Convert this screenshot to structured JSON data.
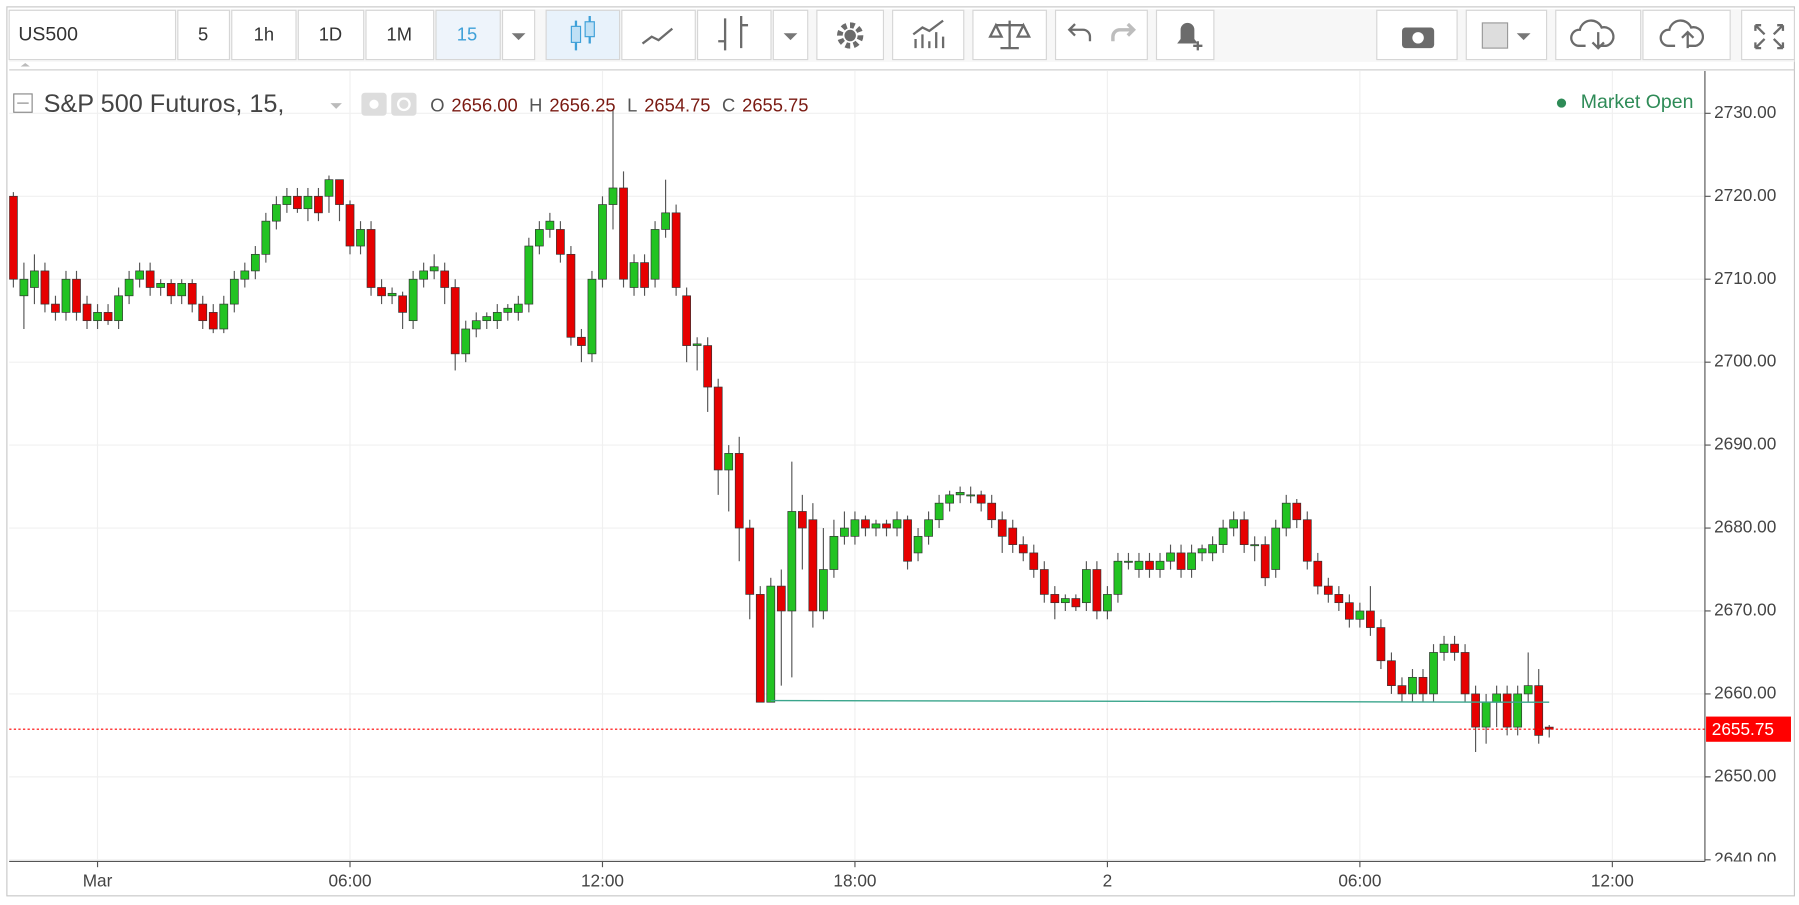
{
  "toolbar": {
    "symbol": "US500",
    "intervals": [
      "5",
      "1h",
      "1D",
      "1M",
      "15"
    ]
  },
  "chart_data": {
    "type": "candlestick",
    "title": "S&P 500 Futuros, 15,",
    "status": "Market Open",
    "ohlc_legend": {
      "names": [
        "O",
        "H",
        "L",
        "C"
      ],
      "values": [
        2656,
        2656.25,
        2654.75,
        2655.75
      ],
      "value_labels": [
        "2656.00",
        "2656.25",
        "2654.75",
        "2655.75"
      ]
    },
    "up_color": "#22c322",
    "down_color": "#e60000",
    "grid": true,
    "xlim": [
      -2.1,
      38.2
    ],
    "ylim": [
      2639.8,
      2735.1
    ],
    "xticks": [
      {
        "value": 0,
        "label": "Mar"
      },
      {
        "value": 6,
        "label": "06:00"
      },
      {
        "value": 12,
        "label": "12:00"
      },
      {
        "value": 18,
        "label": "18:00"
      },
      {
        "value": 24,
        "label": "2"
      },
      {
        "value": 30,
        "label": "06:00"
      },
      {
        "value": 36,
        "label": "12:00"
      }
    ],
    "yticks": [
      {
        "value": 2640,
        "label": "2640.00"
      },
      {
        "value": 2650,
        "label": "2650.00"
      },
      {
        "value": 2660,
        "label": "2660.00"
      },
      {
        "value": 2670,
        "label": "2670.00"
      },
      {
        "value": 2680,
        "label": "2680.00"
      },
      {
        "value": 2690,
        "label": "2690.00"
      },
      {
        "value": 2700,
        "label": "2700.00"
      },
      {
        "value": 2710,
        "label": "2710.00"
      },
      {
        "value": 2720,
        "label": "2720.00"
      },
      {
        "value": 2730,
        "label": "2730.00"
      }
    ],
    "x": [
      -2,
      -1.75,
      -1.5,
      -1.25,
      -1,
      -0.75,
      -0.5,
      -0.25,
      0,
      0.25,
      0.5,
      0.75,
      1,
      1.25,
      1.5,
      1.75,
      2,
      2.25,
      2.5,
      2.75,
      3,
      3.25,
      3.5,
      3.75,
      4,
      4.25,
      4.5,
      4.75,
      5,
      5.25,
      5.5,
      5.75,
      6,
      6.25,
      6.5,
      6.75,
      7,
      7.25,
      7.5,
      7.75,
      8,
      8.25,
      8.5,
      8.75,
      9,
      9.25,
      9.5,
      9.75,
      10,
      10.25,
      10.5,
      10.75,
      11,
      11.25,
      11.5,
      11.75,
      12,
      12.25,
      12.5,
      12.75,
      13,
      13.25,
      13.5,
      13.75,
      14,
      14.25,
      14.5,
      14.75,
      15,
      15.25,
      15.5,
      15.75,
      16,
      16.25,
      16.5,
      16.75,
      17,
      17.25,
      17.5,
      17.75,
      18,
      18.25,
      18.5,
      18.75,
      19,
      19.25,
      19.5,
      19.75,
      20,
      20.25,
      20.5,
      20.75,
      21,
      21.25,
      21.5,
      21.75,
      22,
      22.25,
      22.5,
      22.75,
      23,
      23.25,
      23.5,
      23.75,
      24,
      24.25,
      24.5,
      24.75,
      25,
      25.25,
      25.5,
      25.75,
      26,
      26.25,
      26.5,
      26.75,
      27,
      27.25,
      27.5,
      27.75,
      28,
      28.25,
      28.5,
      28.75,
      29,
      29.25,
      29.5,
      29.75,
      30,
      30.25,
      30.5,
      30.75,
      31,
      31.25,
      31.5,
      31.75,
      32,
      32.25,
      32.5,
      32.75,
      33,
      33.25,
      33.5,
      33.75,
      34,
      34.25,
      34.5
    ],
    "open": [
      2720,
      2708,
      2709,
      2711,
      2707,
      2706,
      2710,
      2707,
      2705,
      2706,
      2705,
      2708,
      2710,
      2711,
      2709,
      2709.5,
      2708,
      2709.5,
      2707,
      2706,
      2704,
      2707,
      2710,
      2711,
      2713,
      2717,
      2719,
      2720,
      2718.5,
      2720,
      2720,
      2722,
      2719,
      2714,
      2716,
      2709,
      2708,
      2708,
      2705,
      2710,
      2711,
      2711,
      2709,
      2701,
      2704,
      2705,
      2705,
      2706,
      2706,
      2707,
      2714,
      2716,
      2716,
      2713,
      2703,
      2701,
      2710,
      2719,
      2721,
      2709,
      2712,
      2710,
      2716,
      2718,
      2708,
      2702,
      2702,
      2697,
      2687,
      2689,
      2680,
      2672,
      2659,
      2673,
      2670,
      2682,
      2681,
      2670,
      2675,
      2679,
      2679,
      2681,
      2680,
      2680.5,
      2680,
      2681,
      2677,
      2679,
      2681,
      2683,
      2684,
      2684,
      2684,
      2683,
      2681,
      2680,
      2678,
      2677,
      2675,
      2672,
      2671,
      2671.5,
      2671,
      2675,
      2670,
      2672,
      2676,
      2675,
      2676,
      2675,
      2676,
      2677,
      2675,
      2677,
      2677,
      2678,
      2680,
      2681,
      2678,
      2678,
      2675,
      2680,
      2683,
      2681,
      2676,
      2673,
      2672,
      2671,
      2669,
      2670,
      2668,
      2664,
      2661,
      2660,
      2662,
      2660,
      2665,
      2666,
      2665,
      2660,
      2656,
      2659,
      2660,
      2656,
      2660,
      2661,
      2656
    ],
    "high": [
      2720.5,
      2712,
      2713,
      2712,
      2708,
      2711,
      2711,
      2708,
      2707,
      2707,
      2709,
      2711,
      2712,
      2712,
      2710,
      2710,
      2710,
      2710,
      2708,
      2707,
      2708,
      2711,
      2712,
      2714,
      2718,
      2720,
      2721,
      2721,
      2721,
      2721,
      2722.5,
      2722,
      2719.5,
      2717,
      2717,
      2710,
      2709,
      2708.5,
      2711,
      2712,
      2713,
      2712,
      2710,
      2705,
      2706,
      2706,
      2707,
      2707,
      2708,
      2715,
      2717,
      2718,
      2717,
      2714,
      2704,
      2711,
      2720,
      2730.5,
      2723,
      2713,
      2713,
      2717,
      2722,
      2719,
      2709,
      2703,
      2703,
      2698,
      2690,
      2691,
      2681,
      2673,
      2674,
      2675,
      2688,
      2684,
      2683,
      2680,
      2681,
      2682,
      2682,
      2681.5,
      2681,
      2681,
      2682,
      2681.5,
      2680,
      2682,
      2684,
      2684.5,
      2685,
      2685,
      2684.5,
      2684,
      2682,
      2681,
      2679,
      2678,
      2676,
      2673,
      2672,
      2672,
      2676,
      2676,
      2673,
      2677,
      2677,
      2677,
      2677,
      2677,
      2678,
      2678,
      2678,
      2678,
      2679,
      2681,
      2682,
      2682,
      2679,
      2679,
      2681,
      2684,
      2683.5,
      2682,
      2677,
      2674,
      2673,
      2672,
      2671,
      2673,
      2669,
      2665,
      2662,
      2663,
      2663,
      2666,
      2667,
      2667,
      2666,
      2661,
      2660,
      2661,
      2661,
      2661,
      2665,
      2663,
      2656.25
    ],
    "low": [
      2709,
      2704,
      2707,
      2706,
      2705,
      2705,
      2705,
      2704,
      2704,
      2704.5,
      2704,
      2707,
      2709,
      2708,
      2708,
      2707,
      2707,
      2706,
      2704,
      2703.5,
      2703.5,
      2706,
      2709,
      2710,
      2712,
      2716,
      2718,
      2718,
      2717,
      2717,
      2718,
      2717,
      2713,
      2713,
      2708,
      2707,
      2707,
      2704,
      2704,
      2709,
      2710,
      2707,
      2699,
      2700,
      2703,
      2704,
      2704,
      2705,
      2705,
      2706,
      2713,
      2715,
      2712,
      2702,
      2700,
      2700,
      2709,
      2716,
      2709,
      2708,
      2708,
      2709,
      2715,
      2708,
      2700,
      2699,
      2694,
      2684,
      2682,
      2676,
      2669,
      2659,
      2659,
      2661,
      2662,
      2675,
      2668,
      2669,
      2674,
      2678,
      2678,
      2679,
      2679,
      2679,
      2679,
      2675,
      2676,
      2678,
      2680,
      2682,
      2683,
      2683,
      2682,
      2680,
      2677,
      2677,
      2676,
      2674,
      2671,
      2669,
      2670,
      2670,
      2670,
      2669,
      2669,
      2671,
      2675,
      2674,
      2674,
      2674,
      2675,
      2674,
      2674,
      2676,
      2676,
      2677,
      2679,
      2677,
      2676,
      2673,
      2674,
      2679,
      2680,
      2675,
      2672,
      2671,
      2670,
      2668,
      2668,
      2667,
      2663,
      2660,
      2659,
      2659,
      2659,
      2659,
      2664,
      2664,
      2659,
      2653,
      2654,
      2656,
      2655,
      2655,
      2659,
      2654,
      2654.75
    ],
    "close": [
      2710,
      2710,
      2711,
      2707,
      2706,
      2710,
      2706,
      2705,
      2706,
      2705,
      2708,
      2710,
      2711,
      2709,
      2709.5,
      2708,
      2709.5,
      2707,
      2705,
      2704,
      2707,
      2710,
      2711,
      2713,
      2717,
      2719,
      2720,
      2718.5,
      2720,
      2718,
      2722,
      2719,
      2714,
      2716,
      2709,
      2708,
      2708.3,
      2706,
      2710,
      2711,
      2711.5,
      2709,
      2701,
      2704,
      2705,
      2705.5,
      2706,
      2706.5,
      2707,
      2714,
      2716,
      2717,
      2713,
      2703,
      2702,
      2710,
      2719,
      2721,
      2710,
      2712,
      2709,
      2716,
      2718,
      2709,
      2702,
      2702.2,
      2697,
      2687,
      2689,
      2680,
      2672,
      2659,
      2673,
      2670,
      2682,
      2680,
      2670,
      2675,
      2679,
      2680,
      2681,
      2680,
      2680.5,
      2680,
      2681,
      2676,
      2679,
      2681,
      2683,
      2684,
      2684.3,
      2684,
      2683,
      2681,
      2679,
      2678,
      2677,
      2675,
      2672,
      2671,
      2671.5,
      2670.5,
      2675,
      2670,
      2672,
      2676,
      2676,
      2676,
      2675,
      2676,
      2677,
      2675,
      2677,
      2677.5,
      2678,
      2680,
      2681,
      2678,
      2678,
      2674,
      2680,
      2683,
      2681,
      2676,
      2673,
      2672,
      2671,
      2669,
      2670,
      2668,
      2664,
      2661,
      2660,
      2662,
      2660,
      2665,
      2666,
      2665,
      2660,
      2656,
      2659,
      2660,
      2656,
      2660,
      2661,
      2655,
      2655.75
    ],
    "trend_line": {
      "x": [
        16,
        34.5
      ],
      "y": [
        2659.2,
        2659.0
      ],
      "color": "#3aa58c"
    },
    "last_price": 2655.75,
    "last_price_color": "#ff0000"
  }
}
